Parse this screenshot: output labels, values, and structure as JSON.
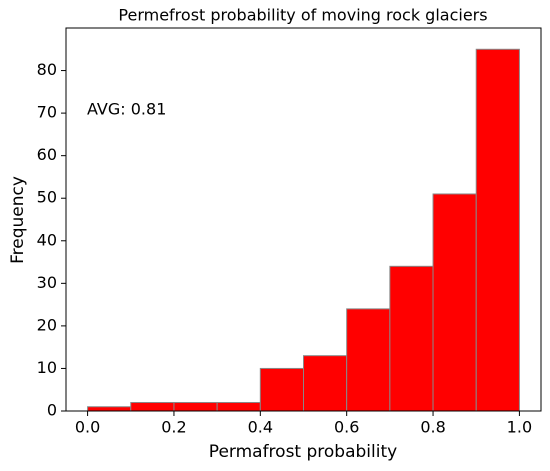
{
  "chart_data": {
    "type": "histogram",
    "title": "Permefrost probability of moving rock glaciers",
    "xlabel": "Permafrost probability",
    "ylabel": "Frequency",
    "bins": [
      0.0,
      0.1,
      0.2,
      0.3,
      0.4,
      0.5,
      0.6,
      0.7,
      0.8,
      0.9,
      1.0
    ],
    "values": [
      1,
      2,
      2,
      2,
      10,
      13,
      24,
      34,
      51,
      85
    ],
    "color": "red",
    "edgecolor": "#888888",
    "xlim": [
      -0.05,
      1.05
    ],
    "ylim": [
      0,
      90
    ],
    "xticks": [
      {
        "value": 0.0,
        "label": "0.0"
      },
      0.2,
      0.4,
      0.6,
      0.8,
      {
        "value": 1.0,
        "label": "1.0"
      }
    ],
    "yticks": [
      0,
      10,
      20,
      30,
      40,
      50,
      60,
      70,
      80
    ],
    "annotation": "AVG: 0.81"
  }
}
